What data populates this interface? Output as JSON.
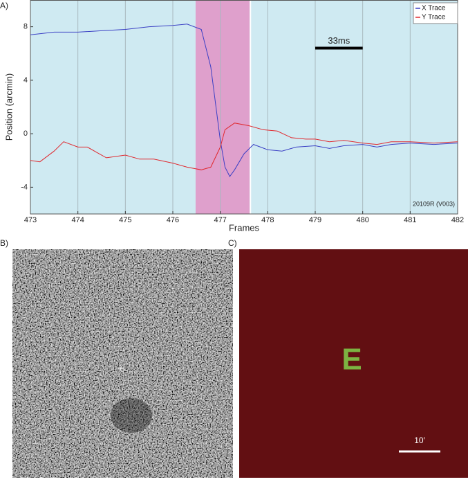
{
  "chart_data": {
    "type": "line",
    "xlabel": "Frames",
    "ylabel": "Position (arcmin)",
    "xlim": [
      473,
      482
    ],
    "ylim": [
      -6,
      10
    ],
    "xticks": [
      473,
      474,
      475,
      476,
      477,
      478,
      479,
      480,
      481,
      482
    ],
    "yticks": [
      -4,
      0,
      4,
      8
    ],
    "grid": true,
    "background": "#cfeaf2",
    "legend": "upper right",
    "series": [
      {
        "name": "X Trace",
        "color": "#3a3fc4",
        "x": [
          473,
          473.5,
          474,
          474.5,
          475,
          475.5,
          476,
          476.3,
          476.6,
          476.8,
          477,
          477.1,
          477.2,
          477.3,
          477.5,
          477.7,
          478,
          478.3,
          478.6,
          479,
          479.3,
          479.6,
          480,
          480.3,
          480.6,
          481,
          481.5,
          482
        ],
        "values": [
          7.4,
          7.6,
          7.6,
          7.7,
          7.8,
          8.0,
          8.1,
          8.2,
          7.8,
          5.0,
          -0.5,
          -2.5,
          -3.2,
          -2.7,
          -1.5,
          -0.8,
          -1.2,
          -1.3,
          -1.0,
          -0.9,
          -1.1,
          -0.9,
          -0.8,
          -1.0,
          -0.8,
          -0.7,
          -0.8,
          -0.7
        ]
      },
      {
        "name": "Y Trace",
        "color": "#e0282e",
        "x": [
          473,
          473.2,
          473.5,
          473.7,
          474,
          474.2,
          474.4,
          474.6,
          475,
          475.3,
          475.6,
          476,
          476.3,
          476.6,
          476.8,
          477,
          477.1,
          477.3,
          477.6,
          477.9,
          478.2,
          478.5,
          478.8,
          479,
          479.3,
          479.6,
          480,
          480.3,
          480.6,
          481,
          481.5,
          482
        ],
        "values": [
          -2.0,
          -2.1,
          -1.3,
          -0.6,
          -1.0,
          -1.0,
          -1.4,
          -1.8,
          -1.6,
          -1.9,
          -1.9,
          -2.2,
          -2.5,
          -2.7,
          -2.5,
          -1.0,
          0.3,
          0.8,
          0.6,
          0.3,
          0.2,
          -0.3,
          -0.4,
          -0.4,
          -0.6,
          -0.5,
          -0.7,
          -0.8,
          -0.6,
          -0.6,
          -0.7,
          -0.6
        ]
      }
    ],
    "shaded_region": {
      "x": [
        476.48,
        477.62
      ],
      "color": "#dfa0cc"
    },
    "scale_bar": {
      "text": "33ms",
      "x": [
        479,
        480
      ],
      "y": 6.4
    },
    "watermark": "20109R (V003)"
  },
  "panels": {
    "a_label": "A)",
    "b_label": "B)",
    "c_label": "C)",
    "c": {
      "stimulus": "E",
      "scale_label": "10′"
    }
  }
}
